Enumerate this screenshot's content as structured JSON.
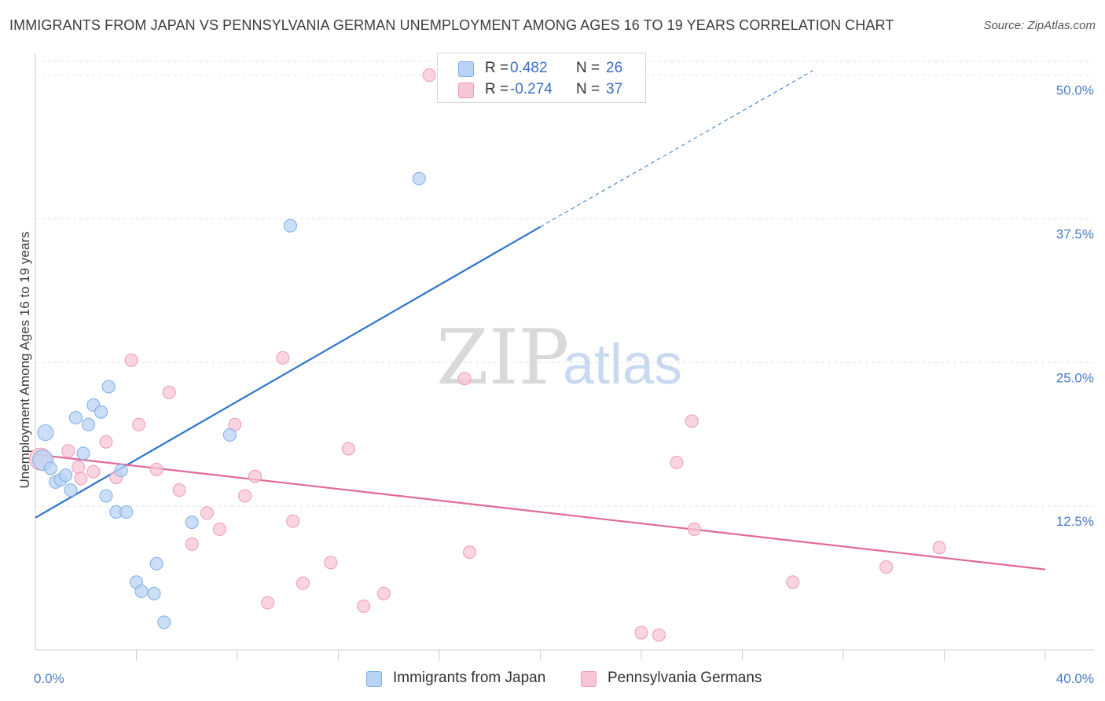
{
  "title": "IMMIGRANTS FROM JAPAN VS PENNSYLVANIA GERMAN UNEMPLOYMENT AMONG AGES 16 TO 19 YEARS CORRELATION CHART",
  "source": "Source: ZipAtlas.com",
  "watermark": {
    "zip": "ZIP",
    "atlas": "atlas"
  },
  "colors": {
    "blue_fill": "#b9d3f5",
    "blue_stroke": "#7faee6",
    "blue_line": "#2f74cc",
    "pink_fill": "#f8c6d6",
    "pink_stroke": "#ee9ab6",
    "pink_line": "#e0699a",
    "grid": "#e3e3e3",
    "axis_text": "#4a7cc7"
  },
  "legend": {
    "rows": [
      {
        "r_label": "R =",
        "r_value": "0.482",
        "n_label": "N =",
        "n_value": "26"
      },
      {
        "r_label": "R =",
        "r_value": "-0.274",
        "n_label": "N =",
        "n_value": "37"
      }
    ]
  },
  "bottom_legend": [
    "Immigrants from Japan",
    "Pennsylvania Germans"
  ],
  "chart_data": {
    "type": "scatter",
    "title": "IMMIGRANTS FROM JAPAN VS PENNSYLVANIA GERMAN UNEMPLOYMENT AMONG AGES 16 TO 19 YEARS CORRELATION CHART",
    "xlabel": "",
    "ylabel": "Unemployment Among Ages 16 to 19 years",
    "xlim": [
      0,
      40
    ],
    "ylim": [
      0,
      51.2
    ],
    "x_tick_labels": [
      "0.0%",
      "40.0%"
    ],
    "y_ticks": [
      12.5,
      25.0,
      37.5,
      50.0
    ],
    "y_tick_labels": [
      "12.5%",
      "25.0%",
      "37.5%",
      "50.0%"
    ],
    "grid": true,
    "legend_position": "top-center",
    "series": [
      {
        "name": "Immigrants from Japan",
        "r": 0.482,
        "n": 26,
        "trend": {
          "x_start": 0,
          "y_start": 11.5,
          "x_solid_end": 20,
          "y_solid_end": 36.8,
          "x_dash_end": 30.8,
          "y_dash_end": 50.4
        },
        "points": [
          [
            0.3,
            16.5
          ],
          [
            0.4,
            18.9
          ],
          [
            0.6,
            15.8
          ],
          [
            0.8,
            14.6
          ],
          [
            1.0,
            14.8
          ],
          [
            1.2,
            15.2
          ],
          [
            1.4,
            13.9
          ],
          [
            1.6,
            20.2
          ],
          [
            1.9,
            17.1
          ],
          [
            2.1,
            19.6
          ],
          [
            2.3,
            21.3
          ],
          [
            2.6,
            20.7
          ],
          [
            2.8,
            13.4
          ],
          [
            2.9,
            22.9
          ],
          [
            3.2,
            12.0
          ],
          [
            3.4,
            15.6
          ],
          [
            3.6,
            12.0
          ],
          [
            4.0,
            5.9
          ],
          [
            4.2,
            5.1
          ],
          [
            4.7,
            4.9
          ],
          [
            4.8,
            7.5
          ],
          [
            5.1,
            2.4
          ],
          [
            6.2,
            11.1
          ],
          [
            7.7,
            18.7
          ],
          [
            10.1,
            36.9
          ],
          [
            15.2,
            41.0
          ]
        ]
      },
      {
        "name": "Pennsylvania Germans",
        "r": -0.274,
        "n": 37,
        "trend": {
          "x_start": 0,
          "y_start": 17.0,
          "x_end": 40,
          "y_end": 7.0
        },
        "points": [
          [
            0.2,
            16.6
          ],
          [
            1.3,
            17.3
          ],
          [
            1.7,
            15.9
          ],
          [
            1.8,
            14.9
          ],
          [
            2.3,
            15.5
          ],
          [
            2.8,
            18.1
          ],
          [
            3.2,
            15.0
          ],
          [
            3.8,
            25.2
          ],
          [
            4.1,
            19.6
          ],
          [
            4.8,
            15.7
          ],
          [
            5.3,
            22.4
          ],
          [
            5.7,
            13.9
          ],
          [
            6.2,
            9.2
          ],
          [
            6.8,
            11.9
          ],
          [
            7.3,
            10.5
          ],
          [
            7.9,
            19.6
          ],
          [
            8.3,
            13.4
          ],
          [
            8.7,
            15.1
          ],
          [
            9.2,
            4.1
          ],
          [
            9.8,
            25.4
          ],
          [
            10.2,
            11.2
          ],
          [
            10.6,
            5.8
          ],
          [
            11.7,
            7.6
          ],
          [
            12.4,
            17.5
          ],
          [
            13.0,
            3.8
          ],
          [
            13.8,
            4.9
          ],
          [
            15.6,
            50.0
          ],
          [
            17.0,
            23.6
          ],
          [
            17.2,
            8.5
          ],
          [
            24.0,
            1.5
          ],
          [
            24.7,
            1.3
          ],
          [
            25.4,
            16.3
          ],
          [
            26.0,
            19.9
          ],
          [
            26.1,
            10.5
          ],
          [
            30.0,
            5.9
          ],
          [
            33.7,
            7.2
          ],
          [
            35.8,
            8.9
          ]
        ]
      }
    ]
  }
}
